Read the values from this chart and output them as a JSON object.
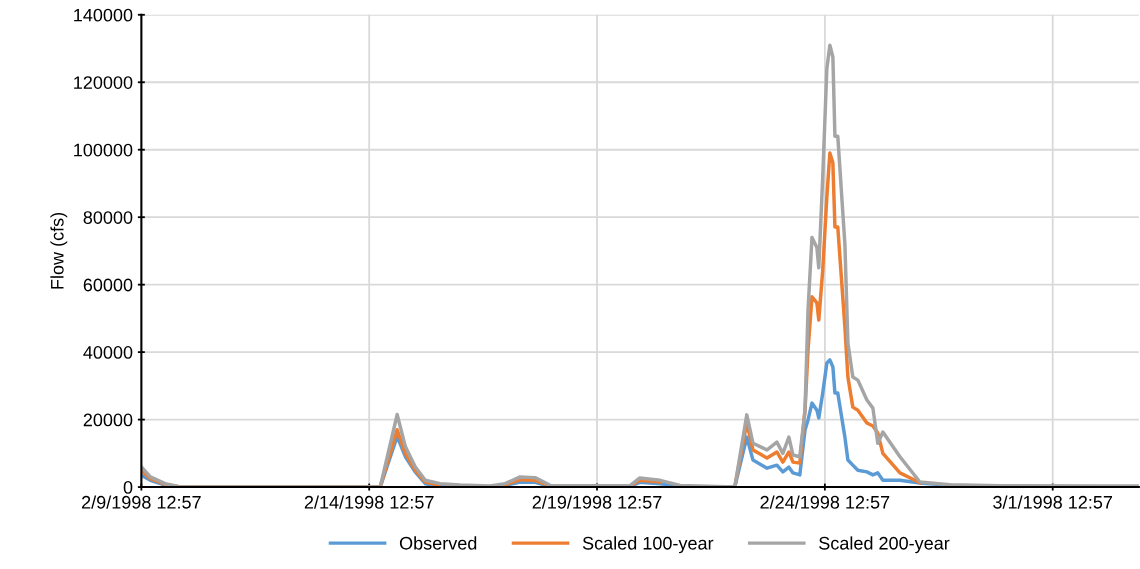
{
  "chart_data": {
    "type": "line",
    "ylabel": "Flow (cfs)",
    "x": [
      "1998-02-09T12:57",
      "1998-02-09T17:40",
      "1998-02-10T01:30",
      "1998-02-10T09:30",
      "1998-02-14T18:45",
      "1998-02-15T03:40",
      "1998-02-15T08:00",
      "1998-02-15T13:10",
      "1998-02-15T18:30",
      "1998-02-16T02:20",
      "1998-02-16T12:50",
      "1998-02-17T04:40",
      "1998-02-17T12:30",
      "1998-02-17T20:30",
      "1998-02-18T04:20",
      "1998-02-18T12:15",
      "1998-02-20T06:20",
      "1998-02-20T11:30",
      "1998-02-20T22:10",
      "1998-02-21T08:40",
      "1998-02-22T13:30",
      "1998-02-22T19:50",
      "1998-02-22T23:05",
      "1998-02-23T06:30",
      "1998-02-23T11:40",
      "1998-02-23T14:50",
      "1998-02-23T18:00",
      "1998-02-23T20:10",
      "1998-02-23T23:45",
      "1998-02-24T02:30",
      "1998-02-24T04:05",
      "1998-02-24T06:10",
      "1998-02-24T08:45",
      "1998-02-24T09:45",
      "1998-02-24T11:50",
      "1998-02-24T14:00",
      "1998-02-24T15:35",
      "1998-02-24T17:10",
      "1998-02-24T18:15",
      "1998-02-24T19:45",
      "1998-02-24T23:30",
      "1998-02-25T01:05",
      "1998-02-25T03:40",
      "1998-02-25T06:20",
      "1998-02-25T11:05",
      "1998-02-25T14:15",
      "1998-02-25T16:50",
      "1998-02-25T19:30",
      "1998-02-26T04:30",
      "1998-02-26T15:00",
      "1998-02-27T06:45",
      "1998-02-28T09:00",
      "1998-03-02T13:40",
      "1998-03-03T10:20"
    ],
    "series": [
      {
        "name": "Observed",
        "color": "#5b9bd5",
        "values": [
          3500,
          2000,
          600,
          0,
          0,
          15000,
          9000,
          4500,
          1000,
          300,
          200,
          100,
          500,
          1500,
          1400,
          200,
          200,
          1400,
          1000,
          200,
          0,
          14800,
          8000,
          5600,
          6500,
          4500,
          5900,
          4200,
          3600,
          16900,
          19900,
          24900,
          22800,
          20500,
          27900,
          36800,
          37700,
          35600,
          27900,
          27900,
          14800,
          8000,
          6500,
          5000,
          4500,
          3600,
          4200,
          2000,
          2000,
          1200,
          500,
          null,
          null,
          null
        ]
      },
      {
        "name": "Scaled 100-year",
        "color": "#ed7d31",
        "values": [
          5000,
          2500,
          800,
          0,
          0,
          17000,
          10000,
          5000,
          1500,
          500,
          null,
          null,
          700,
          2200,
          2000,
          300,
          300,
          2000,
          1500,
          null,
          0,
          19000,
          11000,
          8600,
          10400,
          7400,
          10400,
          7400,
          7100,
          22800,
          40600,
          56400,
          54600,
          49500,
          64400,
          86000,
          99000,
          96100,
          77100,
          77100,
          47500,
          32600,
          23700,
          22800,
          19000,
          18100,
          16000,
          10000,
          4200,
          1300,
          null,
          null,
          null,
          null
        ]
      },
      {
        "name": "Scaled 200-year",
        "color": "#a5a5a5",
        "values": [
          6000,
          3000,
          1000,
          0,
          0,
          21500,
          12000,
          6000,
          2000,
          1000,
          600,
          300,
          1000,
          3000,
          2800,
          500,
          400,
          2700,
          2000,
          500,
          0,
          21400,
          13000,
          11000,
          13300,
          10000,
          14800,
          9500,
          9000,
          22800,
          52500,
          74000,
          71000,
          65000,
          92000,
          124000,
          131000,
          127500,
          104000,
          104000,
          72000,
          42700,
          32600,
          31700,
          25800,
          23400,
          13000,
          16300,
          9000,
          1500,
          700,
          400,
          300,
          300
        ]
      }
    ],
    "xlim": [
      "1998-02-09T12:57",
      "1998-03-03T10:20"
    ],
    "xticks": [
      {
        "value": "1998-02-09T12:57",
        "label": "2/9/1998 12:57"
      },
      {
        "value": "1998-02-14T12:57",
        "label": "2/14/1998 12:57"
      },
      {
        "value": "1998-02-19T12:57",
        "label": "2/19/1998 12:57"
      },
      {
        "value": "1998-02-24T12:57",
        "label": "2/24/1998 12:57"
      },
      {
        "value": "1998-03-01T12:57",
        "label": "3/1/1998 12:57"
      }
    ],
    "ylim": [
      0,
      140000
    ],
    "yticks": [
      0,
      20000,
      40000,
      60000,
      80000,
      100000,
      120000,
      140000
    ],
    "grid": true,
    "legend": "bottom",
    "marker": "none",
    "line_style": "solid"
  }
}
